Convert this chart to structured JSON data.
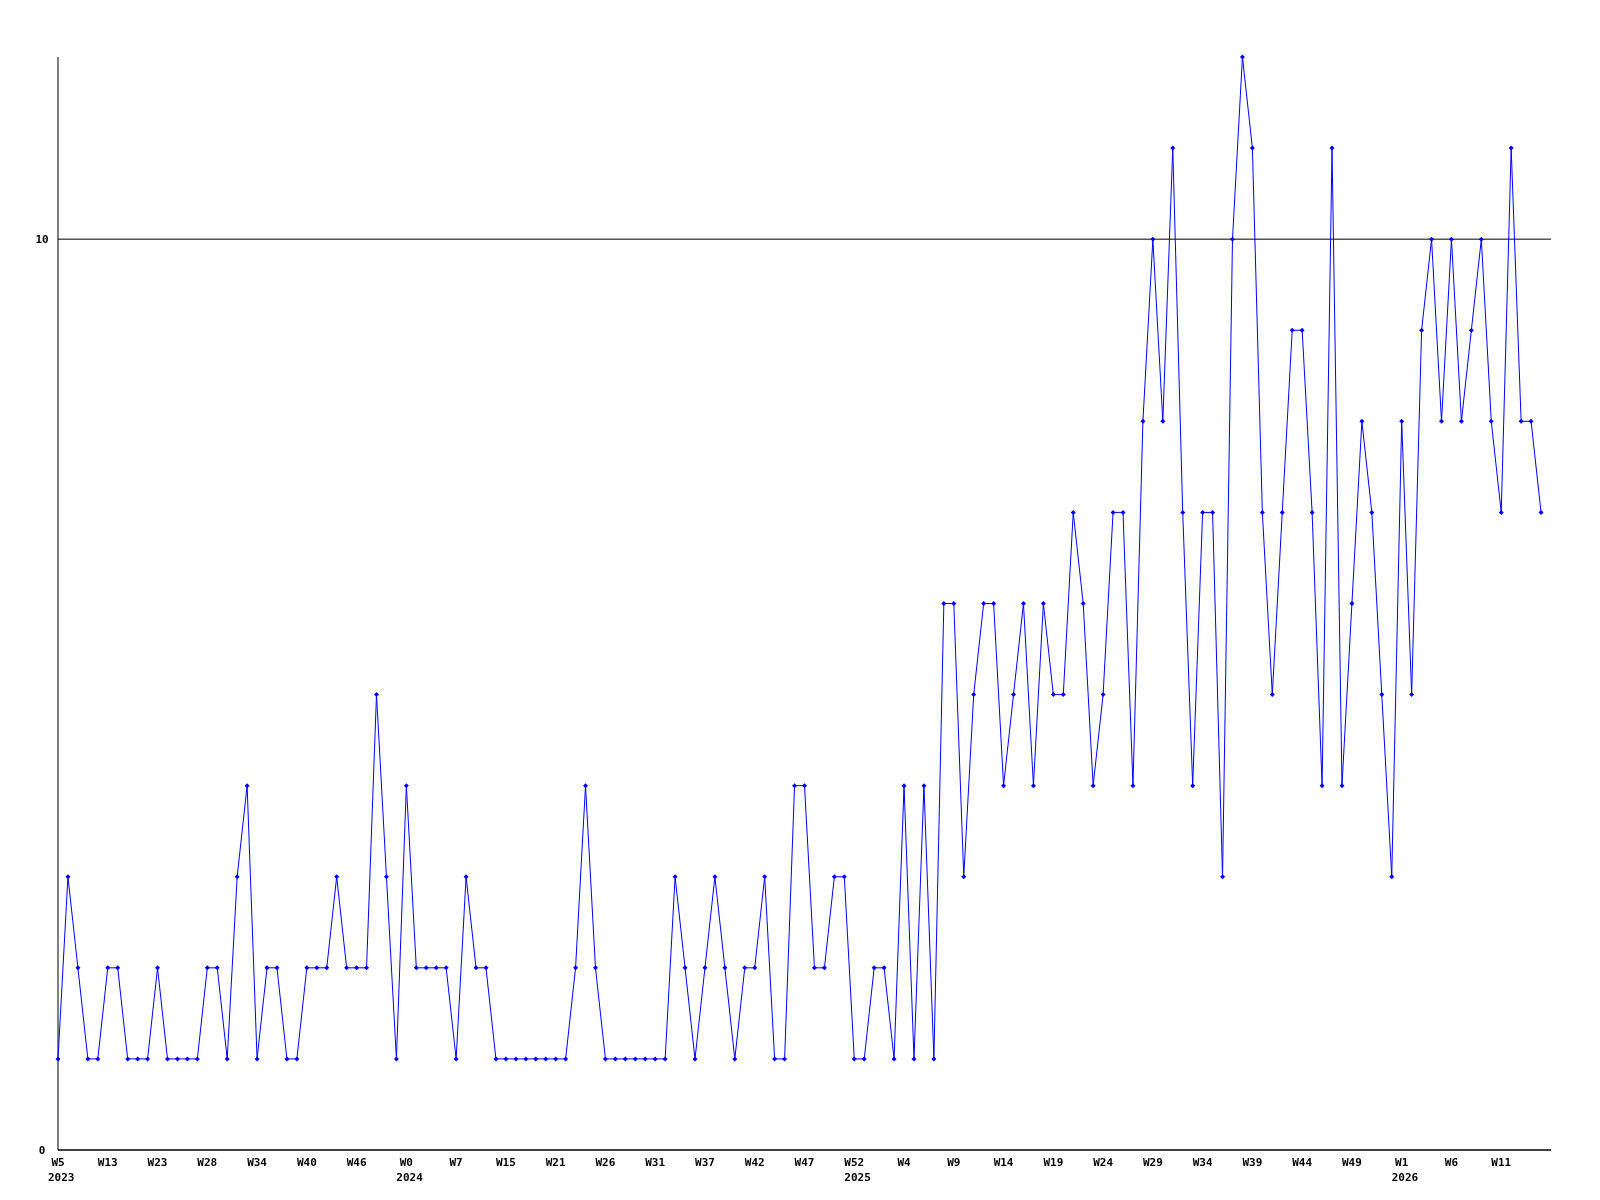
{
  "chart_data": {
    "type": "line",
    "categories": [
      "W5\n2023",
      null,
      null,
      null,
      null,
      "W13",
      null,
      null,
      null,
      null,
      "W23",
      null,
      null,
      null,
      null,
      "W28",
      null,
      null,
      null,
      null,
      "W34",
      null,
      null,
      null,
      null,
      "W40",
      null,
      null,
      null,
      null,
      "W46",
      null,
      null,
      null,
      null,
      "W0\n2024",
      null,
      null,
      null,
      null,
      "W7",
      null,
      null,
      null,
      null,
      "W15",
      null,
      null,
      null,
      null,
      "W21",
      null,
      null,
      null,
      null,
      "W26",
      null,
      null,
      null,
      null,
      "W31",
      null,
      null,
      null,
      null,
      "W37",
      null,
      null,
      null,
      null,
      "W42",
      null,
      null,
      null,
      null,
      "W47",
      null,
      null,
      null,
      null,
      "W52\n2025",
      null,
      null,
      null,
      null,
      "W4",
      null,
      null,
      null,
      null,
      "W9",
      null,
      null,
      null,
      null,
      "W14",
      null,
      null,
      null,
      null,
      "W19",
      null,
      null,
      null,
      null,
      "W24",
      null,
      null,
      null,
      null,
      "W29",
      null,
      null,
      null,
      null,
      "W34",
      null,
      null,
      null,
      null,
      "W39",
      null,
      null,
      null,
      null,
      "W44",
      null,
      null,
      null,
      null,
      "W49",
      null,
      null,
      null,
      null,
      "W1\n2026",
      null,
      null,
      null,
      null,
      "W6",
      null,
      null,
      null,
      null,
      "W11",
      null,
      null,
      null,
      null
    ],
    "series": [
      {
        "color": "#0000ff",
        "values": [
          1,
          3,
          2,
          1,
          1,
          2,
          2,
          1,
          1,
          1,
          2,
          1,
          1,
          1,
          1,
          2,
          2,
          1,
          3,
          4,
          1,
          2,
          2,
          1,
          1,
          2,
          2,
          2,
          3,
          2,
          2,
          2,
          5,
          3,
          1,
          4,
          2,
          2,
          2,
          2,
          1,
          3,
          2,
          2,
          1,
          1,
          1,
          1,
          1,
          1,
          1,
          1,
          2,
          4,
          2,
          1,
          1,
          1,
          1,
          1,
          1,
          1,
          3,
          2,
          1,
          2,
          3,
          2,
          1,
          2,
          2,
          3,
          1,
          1,
          4,
          4,
          2,
          2,
          3,
          3,
          1,
          1,
          2,
          2,
          1,
          4,
          1,
          4,
          1,
          6,
          6,
          3,
          5,
          6,
          6,
          4,
          5,
          6,
          4,
          6,
          5,
          5,
          7,
          6,
          4,
          5,
          7,
          7,
          4,
          8,
          10,
          8,
          11,
          7,
          4,
          7,
          7,
          3,
          10,
          12,
          11,
          7,
          5,
          7,
          9,
          9,
          7,
          4,
          11,
          4,
          6,
          8,
          7,
          5,
          3,
          8,
          5,
          9,
          10,
          8,
          10,
          8,
          9,
          10,
          8,
          7,
          11,
          8,
          8,
          7
        ]
      }
    ],
    "ylim": [
      0,
      12
    ],
    "yticks": [
      0,
      10
    ],
    "grid": "y",
    "marker": "diamond",
    "line_style": "solid"
  }
}
